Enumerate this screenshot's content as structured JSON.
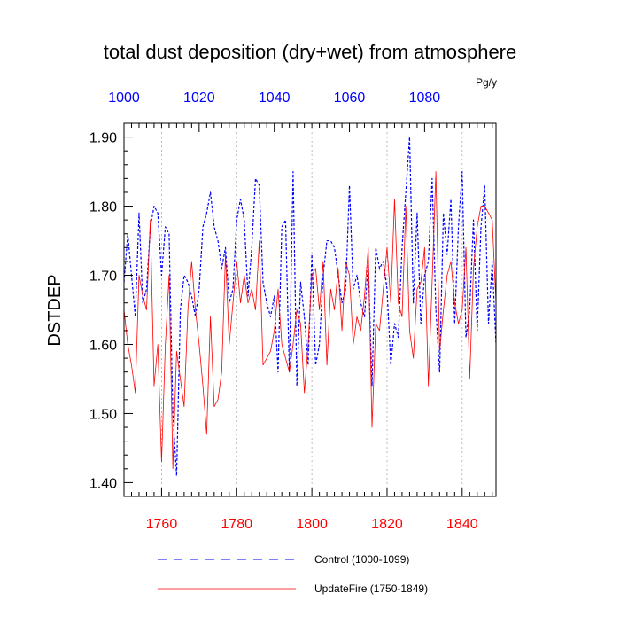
{
  "chart_data": {
    "type": "line",
    "title": "total dust deposition (dry+wet) from atmosphere",
    "units": "Pg/y",
    "ylabel": "DSTDEP",
    "ylim": [
      1.38,
      1.92
    ],
    "y_ticks": [
      1.4,
      1.5,
      1.6,
      1.7,
      1.8,
      1.9
    ],
    "y_tick_labels": [
      "1.40",
      "1.50",
      "1.60",
      "1.70",
      "1.80",
      "1.90"
    ],
    "x_bottom": {
      "range": [
        1750,
        1849
      ],
      "ticks": [
        1760,
        1780,
        1800,
        1820,
        1840
      ],
      "tick_labels": [
        "1760",
        "1780",
        "1800",
        "1820",
        "1840"
      ],
      "color": "#ff0000"
    },
    "x_top": {
      "range": [
        1000,
        1099
      ],
      "ticks": [
        1000,
        1020,
        1040,
        1060,
        1080
      ],
      "tick_labels": [
        "1000",
        "1020",
        "1040",
        "1060",
        "1080"
      ],
      "color": "#0000ff"
    },
    "grid": "vertical dotted at major ticks",
    "series": [
      {
        "name": "Control (1000-1099)",
        "axis": "top",
        "color": "#0000ff",
        "style": "dashed",
        "x_start": 1000,
        "values": [
          1.69,
          1.76,
          1.7,
          1.64,
          1.79,
          1.66,
          1.68,
          1.77,
          1.8,
          1.79,
          1.7,
          1.77,
          1.76,
          1.5,
          1.41,
          1.65,
          1.7,
          1.69,
          1.67,
          1.64,
          1.68,
          1.77,
          1.79,
          1.82,
          1.77,
          1.75,
          1.71,
          1.74,
          1.66,
          1.68,
          1.78,
          1.81,
          1.78,
          1.67,
          1.74,
          1.84,
          1.83,
          1.69,
          1.66,
          1.64,
          1.67,
          1.56,
          1.77,
          1.78,
          1.56,
          1.85,
          1.54,
          1.69,
          1.64,
          1.57,
          1.73,
          1.57,
          1.6,
          1.7,
          1.75,
          1.75,
          1.74,
          1.7,
          1.66,
          1.68,
          1.83,
          1.68,
          1.7,
          1.66,
          1.64,
          1.72,
          1.54,
          1.74,
          1.71,
          1.72,
          1.68,
          1.57,
          1.63,
          1.61,
          1.74,
          1.82,
          1.9,
          1.66,
          1.79,
          1.63,
          1.7,
          1.72,
          1.84,
          1.65,
          1.56,
          1.79,
          1.73,
          1.81,
          1.63,
          1.77,
          1.85,
          1.61,
          1.65,
          1.78,
          1.62,
          1.77,
          1.83,
          1.63,
          1.72,
          1.6
        ]
      },
      {
        "name": "UpdateFire (1750-1849)",
        "axis": "bottom",
        "color": "#ff0000",
        "style": "solid",
        "x_start": 1750,
        "values": [
          1.65,
          1.6,
          1.57,
          1.53,
          1.7,
          1.67,
          1.65,
          1.78,
          1.54,
          1.6,
          1.43,
          1.6,
          1.7,
          1.42,
          1.59,
          1.55,
          1.51,
          1.65,
          1.72,
          1.65,
          1.6,
          1.54,
          1.47,
          1.64,
          1.51,
          1.52,
          1.56,
          1.73,
          1.6,
          1.66,
          1.72,
          1.66,
          1.7,
          1.66,
          1.68,
          1.65,
          1.75,
          1.57,
          1.58,
          1.59,
          1.62,
          1.68,
          1.6,
          1.58,
          1.56,
          1.6,
          1.65,
          1.63,
          1.53,
          1.6,
          1.7,
          1.71,
          1.65,
          1.72,
          1.57,
          1.68,
          1.65,
          1.71,
          1.62,
          1.72,
          1.7,
          1.6,
          1.64,
          1.62,
          1.67,
          1.74,
          1.48,
          1.63,
          1.62,
          1.68,
          1.74,
          1.66,
          1.81,
          1.66,
          1.64,
          1.8,
          1.62,
          1.58,
          1.68,
          1.69,
          1.74,
          1.54,
          1.69,
          1.85,
          1.59,
          1.65,
          1.7,
          1.72,
          1.66,
          1.63,
          1.65,
          1.74,
          1.55,
          1.71,
          1.77,
          1.8,
          1.8,
          1.79,
          1.78,
          1.66
        ]
      }
    ],
    "legend": [
      {
        "label": "Control (1000-1099)",
        "color": "#0000ff",
        "style": "dashed"
      },
      {
        "label": "UpdateFire (1750-1849)",
        "color": "#ff0000",
        "style": "solid"
      }
    ],
    "legend_position": "bottom-center"
  }
}
